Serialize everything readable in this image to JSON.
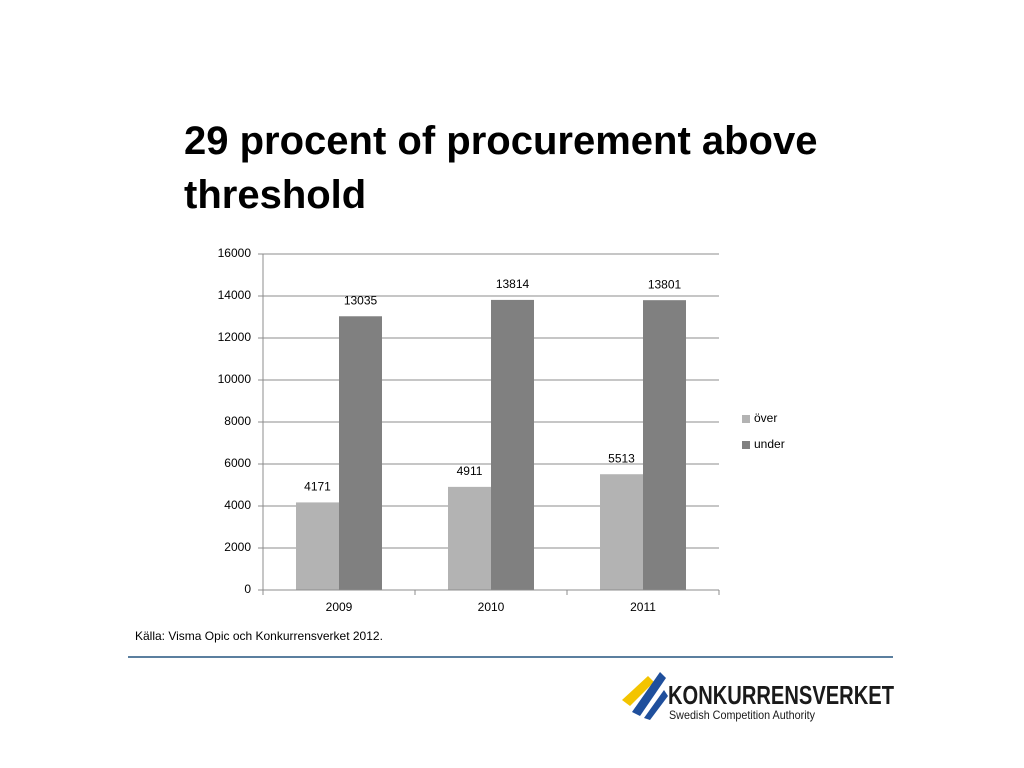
{
  "chart_data": {
    "type": "bar",
    "title": "29 procent of procurement above threshold",
    "categories": [
      "2009",
      "2010",
      "2011"
    ],
    "series": [
      {
        "name": "över",
        "color": "#b3b3b3",
        "values": [
          4171,
          4911,
          5513
        ]
      },
      {
        "name": "under",
        "color": "#808080",
        "values": [
          13035,
          13814,
          13801
        ]
      }
    ],
    "ylim": [
      0,
      16000
    ],
    "yticks": [
      0,
      2000,
      4000,
      6000,
      8000,
      10000,
      12000,
      14000,
      16000
    ],
    "grid": true,
    "legend": "right",
    "source": "Källa: Visma Opic och Konkurrensverket 2012."
  },
  "logo": {
    "name": "KONKURRENSVERKET",
    "tagline": "Swedish Competition Authority"
  }
}
